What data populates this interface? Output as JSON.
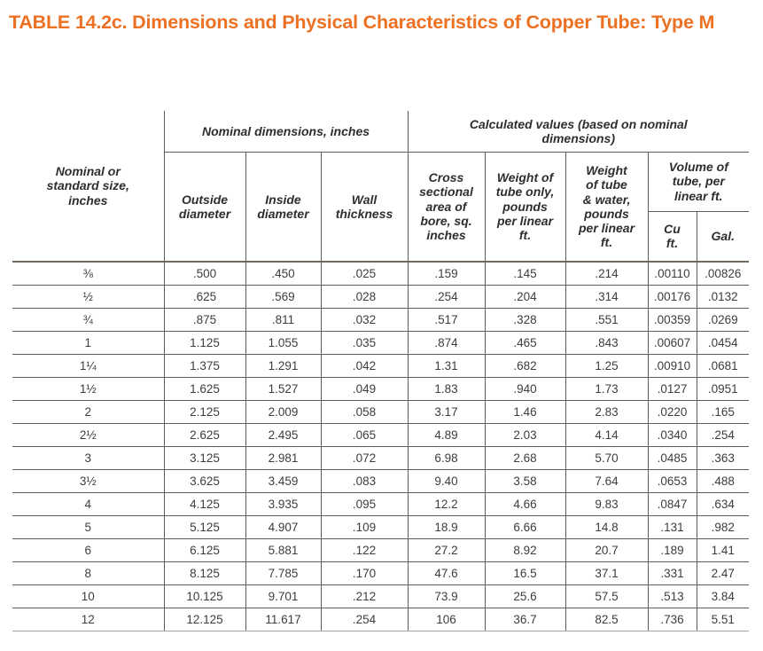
{
  "title": "TABLE 14.2c. Dimensions and Physical Characteristics of Copper Tube: Type M",
  "colors": {
    "title-color": "#ED7123",
    "line": "#5E5E5E",
    "line-heavy": "#6E675E",
    "text": "#3D3D3D"
  },
  "table": {
    "corner": "Nominal or\nstandard size,\ninches",
    "groups": [
      "Nominal dimensions, inches",
      "Calculated values (based on nominal\ndimensions)"
    ],
    "columns": [
      "Outside\ndiameter",
      "Inside\ndiameter",
      "Wall\nthickness",
      "Cross\nsectional\narea of\nbore, sq.\ninches",
      "Weight of\ntube only,\npounds\nper linear\nft.",
      "Weight\nof tube\n& water,\npounds\nper linear\nft.",
      "Volume of\ntube, per\nlinear ft.",
      "Cu\nft.",
      "Gal."
    ],
    "rows": [
      [
        "⅜",
        ".500",
        ".450",
        ".025",
        ".159",
        ".145",
        ".214",
        ".00110",
        ".00826"
      ],
      [
        "½",
        ".625",
        ".569",
        ".028",
        ".254",
        ".204",
        ".314",
        ".00176",
        ".0132"
      ],
      [
        "¾",
        ".875",
        ".811",
        ".032",
        ".517",
        ".328",
        ".551",
        ".00359",
        ".0269"
      ],
      [
        "1",
        "1.125",
        "1.055",
        ".035",
        ".874",
        ".465",
        ".843",
        ".00607",
        ".0454"
      ],
      [
        "1¼",
        "1.375",
        "1.291",
        ".042",
        "1.31",
        ".682",
        "1.25",
        ".00910",
        ".0681"
      ],
      [
        "1½",
        "1.625",
        "1.527",
        ".049",
        "1.83",
        ".940",
        "1.73",
        ".0127",
        ".0951"
      ],
      [
        "2",
        "2.125",
        "2.009",
        ".058",
        "3.17",
        "1.46",
        "2.83",
        ".0220",
        ".165"
      ],
      [
        "2½",
        "2.625",
        "2.495",
        ".065",
        "4.89",
        "2.03",
        "4.14",
        ".0340",
        ".254"
      ],
      [
        "3",
        "3.125",
        "2.981",
        ".072",
        "6.98",
        "2.68",
        "5.70",
        ".0485",
        ".363"
      ],
      [
        "3½",
        "3.625",
        "3.459",
        ".083",
        "9.40",
        "3.58",
        "7.64",
        ".0653",
        ".488"
      ],
      [
        "4",
        "4.125",
        "3.935",
        ".095",
        "12.2",
        "4.66",
        "9.83",
        ".0847",
        ".634"
      ],
      [
        "5",
        "5.125",
        "4.907",
        ".109",
        "18.9",
        "6.66",
        "14.8",
        ".131",
        ".982"
      ],
      [
        "6",
        "6.125",
        "5.881",
        ".122",
        "27.2",
        "8.92",
        "20.7",
        ".189",
        "1.41"
      ],
      [
        "8",
        "8.125",
        "7.785",
        ".170",
        "47.6",
        "16.5",
        "37.1",
        ".331",
        "2.47"
      ],
      [
        "10",
        "10.125",
        "9.701",
        ".212",
        "73.9",
        "25.6",
        "57.5",
        ".513",
        "3.84"
      ],
      [
        "12",
        "12.125",
        "11.617",
        ".254",
        "106",
        "36.7",
        "82.5",
        ".736",
        "5.51"
      ]
    ]
  }
}
